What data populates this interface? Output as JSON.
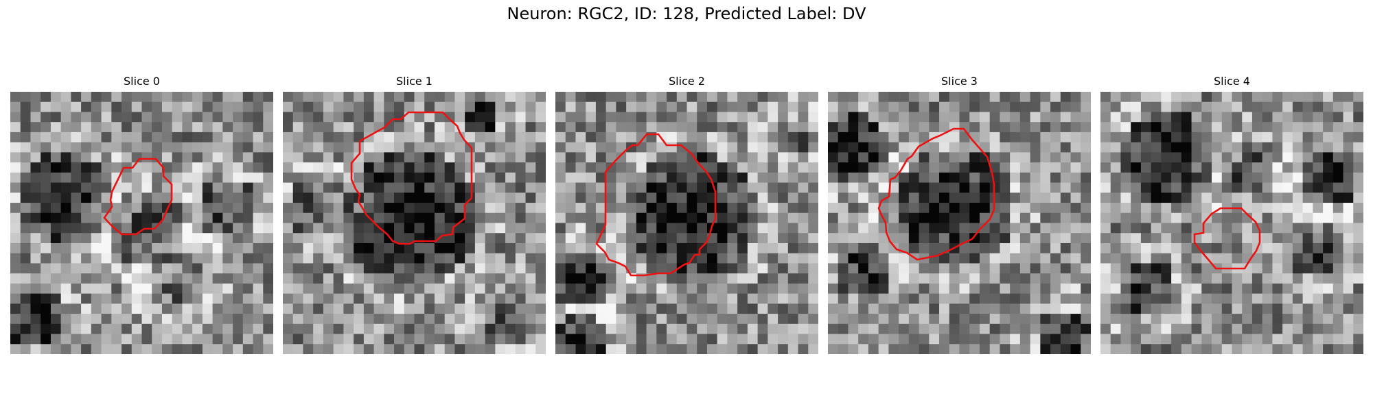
{
  "figure": {
    "title": "Neuron: RGC2, ID: 128, Predicted Label: DV"
  },
  "panels": [
    {
      "title": "Slice 0"
    },
    {
      "title": "Slice 1"
    },
    {
      "title": "Slice 2"
    },
    {
      "title": "Slice 3"
    },
    {
      "title": "Slice 4"
    }
  ],
  "colors": {
    "contour": "#ee1111",
    "background": "#ffffff"
  }
}
